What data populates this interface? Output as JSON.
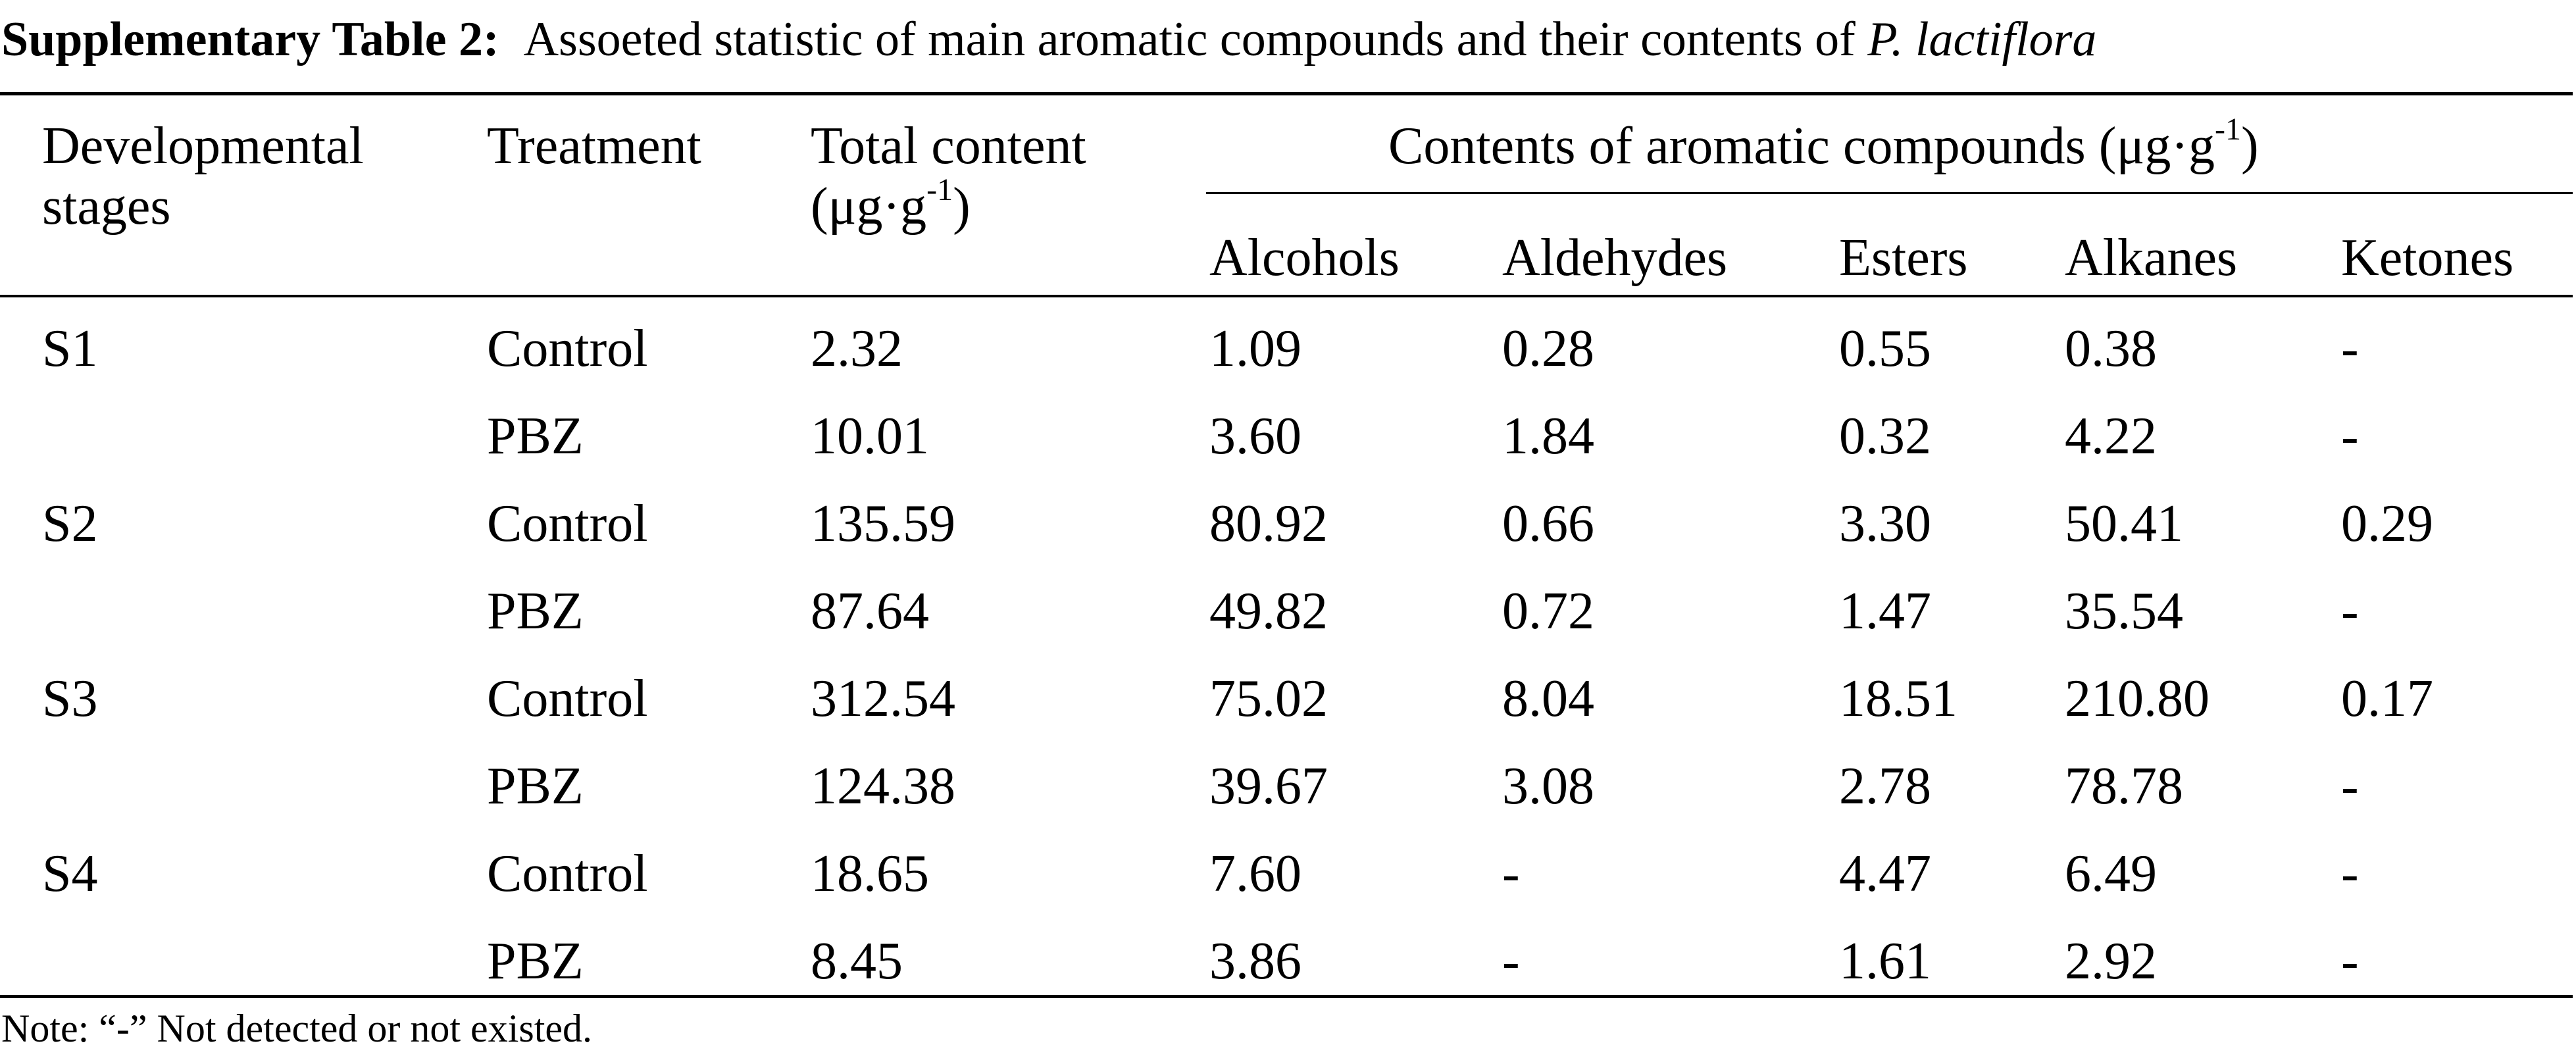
{
  "caption": {
    "label": "Supplementary Table 2:",
    "text": "Assoeted statistic of main aromatic compounds and their contents of",
    "species": "P. lactiflora"
  },
  "header": {
    "stage_line1": "Developmental",
    "stage_line2": "stages",
    "treatment": "Treatment",
    "total_line1": "Total content",
    "total_unit_open": "(μg·g",
    "total_unit_exp": "-1",
    "total_unit_close": ")",
    "group_text": "Contents of aromatic compounds (μg·g",
    "group_exp": "-1",
    "group_close": ")",
    "alcohols": "Alcohols",
    "aldehydes": "Aldehydes",
    "esters": "Esters",
    "alkanes": "Alkanes",
    "ketones": "Ketones"
  },
  "rows": [
    {
      "stage": "S1",
      "treatment": "Control",
      "total": "2.32",
      "alcohols": "1.09",
      "aldehydes": "0.28",
      "esters": "0.55",
      "alkanes": "0.38",
      "ketones": "-"
    },
    {
      "stage": "",
      "treatment": "PBZ",
      "total": "10.01",
      "alcohols": "3.60",
      "aldehydes": "1.84",
      "esters": "0.32",
      "alkanes": "4.22",
      "ketones": "-"
    },
    {
      "stage": "S2",
      "treatment": "Control",
      "total": "135.59",
      "alcohols": "80.92",
      "aldehydes": "0.66",
      "esters": "3.30",
      "alkanes": "50.41",
      "ketones": "0.29"
    },
    {
      "stage": "",
      "treatment": "PBZ",
      "total": "87.64",
      "alcohols": "49.82",
      "aldehydes": "0.72",
      "esters": "1.47",
      "alkanes": "35.54",
      "ketones": "-"
    },
    {
      "stage": "S3",
      "treatment": "Control",
      "total": "312.54",
      "alcohols": "75.02",
      "aldehydes": "8.04",
      "esters": "18.51",
      "alkanes": "210.80",
      "ketones": "0.17"
    },
    {
      "stage": "",
      "treatment": "PBZ",
      "total": "124.38",
      "alcohols": "39.67",
      "aldehydes": "3.08",
      "esters": "2.78",
      "alkanes": "78.78",
      "ketones": "-"
    },
    {
      "stage": "S4",
      "treatment": "Control",
      "total": "18.65",
      "alcohols": "7.60",
      "aldehydes": "-",
      "esters": "4.47",
      "alkanes": "6.49",
      "ketones": "-"
    },
    {
      "stage": "",
      "treatment": "PBZ",
      "total": "8.45",
      "alcohols": "3.86",
      "aldehydes": "-",
      "esters": "1.61",
      "alkanes": "2.92",
      "ketones": "-"
    }
  ],
  "note": "Note: “-” Not detected or not existed."
}
